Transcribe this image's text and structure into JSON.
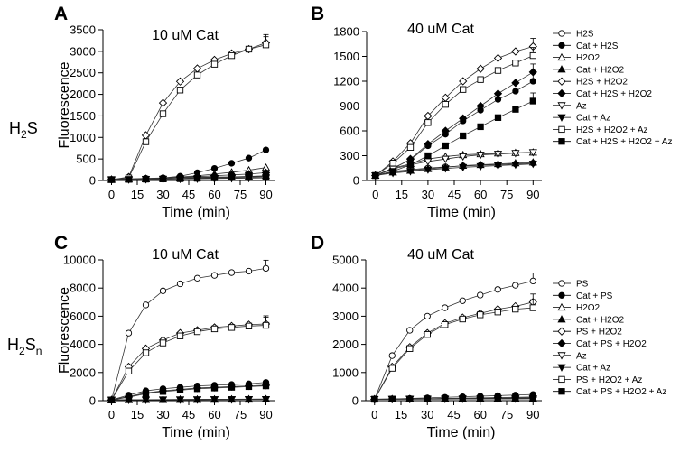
{
  "row_labels": {
    "top": {
      "main": "H",
      "sub": "2",
      "tail": "S"
    },
    "bottom": {
      "main": "H",
      "sub": "2",
      "tail": "S",
      "sub2": "n"
    }
  },
  "chart_data": [
    {
      "panel": "A",
      "title": "10 uM Cat",
      "type": "line",
      "xlabel": "Time (min)",
      "ylabel": "Fluorescence",
      "xlim": [
        -5,
        95
      ],
      "ylim": [
        0,
        3500
      ],
      "xticks": [
        0,
        15,
        30,
        45,
        60,
        75,
        90
      ],
      "yticks": [
        0,
        500,
        1000,
        1500,
        2000,
        2500,
        3000,
        3500
      ],
      "x": [
        0,
        10,
        20,
        30,
        40,
        50,
        60,
        70,
        80,
        90
      ],
      "series": [
        {
          "name": "H2S",
          "marker": "circle-open",
          "values": [
            20,
            40,
            50,
            60,
            70,
            75,
            80,
            85,
            90,
            95
          ]
        },
        {
          "name": "Cat + H2S",
          "marker": "circle-filled",
          "values": [
            20,
            30,
            40,
            60,
            100,
            180,
            280,
            400,
            520,
            710
          ]
        },
        {
          "name": "H2O2",
          "marker": "triangle-up-open",
          "values": [
            20,
            30,
            40,
            60,
            80,
            110,
            150,
            190,
            240,
            300
          ]
        },
        {
          "name": "Cat + H2O2",
          "marker": "triangle-up-filled",
          "values": [
            20,
            25,
            30,
            40,
            50,
            60,
            70,
            80,
            95,
            110
          ]
        },
        {
          "name": "H2S + H2O2",
          "marker": "diamond-open",
          "values": [
            20,
            80,
            1050,
            1800,
            2300,
            2600,
            2800,
            2950,
            3050,
            3200
          ]
        },
        {
          "name": "Cat + H2S + H2O2",
          "marker": "diamond-filled",
          "values": [
            20,
            30,
            40,
            55,
            70,
            90,
            110,
            130,
            150,
            180
          ]
        },
        {
          "name": "Az",
          "marker": "triangle-down-open",
          "values": [
            20,
            25,
            30,
            35,
            40,
            45,
            50,
            55,
            60,
            65
          ]
        },
        {
          "name": "Cat + Az",
          "marker": "triangle-down-filled",
          "values": [
            20,
            22,
            25,
            30,
            35,
            40,
            45,
            50,
            55,
            60
          ]
        },
        {
          "name": "H2S + H2O2 + Az",
          "marker": "square-open",
          "values": [
            20,
            60,
            900,
            1550,
            2100,
            2450,
            2700,
            2900,
            3050,
            3150
          ]
        },
        {
          "name": "Cat + H2S + H2O2 + Az",
          "marker": "square-filled",
          "values": [
            20,
            25,
            30,
            35,
            40,
            50,
            60,
            70,
            80,
            90
          ]
        }
      ]
    },
    {
      "panel": "B",
      "title": "40 uM Cat",
      "type": "line",
      "xlabel": "Time (min)",
      "ylabel": "",
      "xlim": [
        -5,
        95
      ],
      "ylim": [
        0,
        1800
      ],
      "xticks": [
        0,
        15,
        30,
        45,
        60,
        75,
        90
      ],
      "yticks": [
        0,
        300,
        600,
        900,
        1200,
        1500,
        1800
      ],
      "legend_position": "right",
      "x": [
        0,
        10,
        20,
        30,
        40,
        50,
        60,
        70,
        80,
        90
      ],
      "series": [
        {
          "name": "H2S",
          "marker": "circle-open",
          "values": [
            60,
            110,
            130,
            150,
            165,
            175,
            185,
            190,
            200,
            210
          ]
        },
        {
          "name": "Cat + H2S",
          "marker": "circle-filled",
          "values": [
            60,
            150,
            250,
            420,
            560,
            720,
            850,
            980,
            1080,
            1200
          ]
        },
        {
          "name": "H2O2",
          "marker": "triangle-up-open",
          "values": [
            60,
            150,
            200,
            260,
            290,
            310,
            320,
            330,
            335,
            340
          ]
        },
        {
          "name": "Cat + H2O2",
          "marker": "triangle-up-filled",
          "values": [
            60,
            100,
            120,
            140,
            160,
            180,
            190,
            200,
            210,
            220
          ]
        },
        {
          "name": "H2S + H2O2",
          "marker": "diamond-open",
          "values": [
            60,
            230,
            450,
            780,
            1000,
            1200,
            1350,
            1480,
            1560,
            1620
          ]
        },
        {
          "name": "Cat + H2S + H2O2",
          "marker": "diamond-filled",
          "values": [
            60,
            140,
            260,
            440,
            600,
            750,
            900,
            1050,
            1180,
            1310
          ]
        },
        {
          "name": "Az",
          "marker": "triangle-down-open",
          "values": [
            60,
            140,
            190,
            230,
            260,
            290,
            310,
            320,
            330,
            340
          ]
        },
        {
          "name": "Cat + Az",
          "marker": "triangle-down-filled",
          "values": [
            60,
            90,
            110,
            130,
            145,
            160,
            170,
            180,
            190,
            200
          ]
        },
        {
          "name": "H2S + H2O2 + Az",
          "marker": "square-open",
          "values": [
            60,
            210,
            400,
            700,
            920,
            1100,
            1220,
            1330,
            1420,
            1510
          ]
        },
        {
          "name": "Cat + H2S + H2O2 + Az",
          "marker": "square-filled",
          "values": [
            60,
            110,
            190,
            300,
            420,
            540,
            650,
            760,
            860,
            960
          ]
        }
      ]
    },
    {
      "panel": "C",
      "title": "10 uM Cat",
      "type": "line",
      "xlabel": "Time (min)",
      "ylabel": "Fluorescence",
      "xlim": [
        -5,
        95
      ],
      "ylim": [
        0,
        10000
      ],
      "xticks": [
        0,
        15,
        30,
        45,
        60,
        75,
        90
      ],
      "yticks": [
        0,
        2000,
        4000,
        6000,
        8000,
        10000
      ],
      "x": [
        0,
        10,
        20,
        30,
        40,
        50,
        60,
        70,
        80,
        90
      ],
      "series": [
        {
          "name": "PS",
          "marker": "circle-open",
          "values": [
            50,
            4800,
            6800,
            7800,
            8300,
            8700,
            8900,
            9100,
            9200,
            9400
          ]
        },
        {
          "name": "Cat + PS",
          "marker": "circle-filled",
          "values": [
            50,
            400,
            700,
            850,
            950,
            1050,
            1100,
            1150,
            1200,
            1300
          ]
        },
        {
          "name": "H2O2",
          "marker": "triangle-up-open",
          "values": [
            50,
            60,
            70,
            80,
            90,
            95,
            100,
            105,
            110,
            115
          ]
        },
        {
          "name": "Cat + H2O2",
          "marker": "triangle-up-filled",
          "values": [
            50,
            55,
            60,
            65,
            70,
            75,
            80,
            85,
            90,
            95
          ]
        },
        {
          "name": "PS + H2O2",
          "marker": "diamond-open",
          "values": [
            50,
            2400,
            3700,
            4300,
            4800,
            5000,
            5200,
            5300,
            5400,
            5450
          ]
        },
        {
          "name": "Cat + PS + H2O2",
          "marker": "diamond-filled",
          "values": [
            50,
            300,
            550,
            700,
            800,
            900,
            950,
            1000,
            1050,
            1100
          ]
        },
        {
          "name": "Az",
          "marker": "triangle-down-open",
          "values": [
            50,
            60,
            65,
            70,
            75,
            80,
            85,
            90,
            95,
            100
          ]
        },
        {
          "name": "Cat + Az",
          "marker": "triangle-down-filled",
          "values": [
            50,
            55,
            60,
            65,
            70,
            75,
            80,
            85,
            90,
            95
          ]
        },
        {
          "name": "PS + H2O2 + Az",
          "marker": "square-open",
          "values": [
            50,
            2100,
            3400,
            4100,
            4600,
            4900,
            5100,
            5200,
            5300,
            5350
          ]
        },
        {
          "name": "Cat + PS + H2O2 + Az",
          "marker": "square-filled",
          "values": [
            50,
            250,
            500,
            650,
            750,
            850,
            900,
            950,
            1000,
            1050
          ]
        }
      ]
    },
    {
      "panel": "D",
      "title": "40 uM Cat",
      "type": "line",
      "xlabel": "Time (min)",
      "ylabel": "",
      "xlim": [
        -5,
        95
      ],
      "ylim": [
        0,
        5000
      ],
      "xticks": [
        0,
        15,
        30,
        45,
        60,
        75,
        90
      ],
      "yticks": [
        0,
        1000,
        2000,
        3000,
        4000,
        5000
      ],
      "legend_position": "right",
      "x": [
        0,
        10,
        20,
        30,
        40,
        50,
        60,
        70,
        80,
        90
      ],
      "series": [
        {
          "name": "PS",
          "marker": "circle-open",
          "values": [
            50,
            1600,
            2500,
            3000,
            3300,
            3550,
            3750,
            3950,
            4100,
            4250
          ]
        },
        {
          "name": "Cat + PS",
          "marker": "circle-filled",
          "values": [
            50,
            60,
            80,
            100,
            120,
            140,
            160,
            180,
            200,
            220
          ]
        },
        {
          "name": "H2O2",
          "marker": "triangle-up-open",
          "values": [
            50,
            55,
            60,
            65,
            70,
            75,
            80,
            85,
            90,
            95
          ]
        },
        {
          "name": "Cat + H2O2",
          "marker": "triangle-up-filled",
          "values": [
            50,
            52,
            55,
            58,
            60,
            62,
            65,
            68,
            70,
            72
          ]
        },
        {
          "name": "PS + H2O2",
          "marker": "diamond-open",
          "values": [
            50,
            1200,
            1900,
            2400,
            2750,
            2950,
            3100,
            3250,
            3350,
            3500
          ]
        },
        {
          "name": "Cat + PS + H2O2",
          "marker": "diamond-filled",
          "values": [
            50,
            55,
            60,
            70,
            80,
            90,
            100,
            110,
            120,
            130
          ]
        },
        {
          "name": "Az",
          "marker": "triangle-down-open",
          "values": [
            50,
            55,
            60,
            62,
            65,
            68,
            70,
            72,
            75,
            78
          ]
        },
        {
          "name": "Cat + Az",
          "marker": "triangle-down-filled",
          "values": [
            50,
            52,
            54,
            56,
            58,
            60,
            62,
            64,
            66,
            68
          ]
        },
        {
          "name": "PS + H2O2 + Az",
          "marker": "square-open",
          "values": [
            50,
            1150,
            1850,
            2350,
            2700,
            2900,
            3050,
            3150,
            3250,
            3300
          ]
        },
        {
          "name": "Cat + PS + H2O2 + Az",
          "marker": "square-filled",
          "values": [
            50,
            55,
            60,
            65,
            70,
            75,
            80,
            85,
            90,
            95
          ]
        }
      ]
    }
  ]
}
